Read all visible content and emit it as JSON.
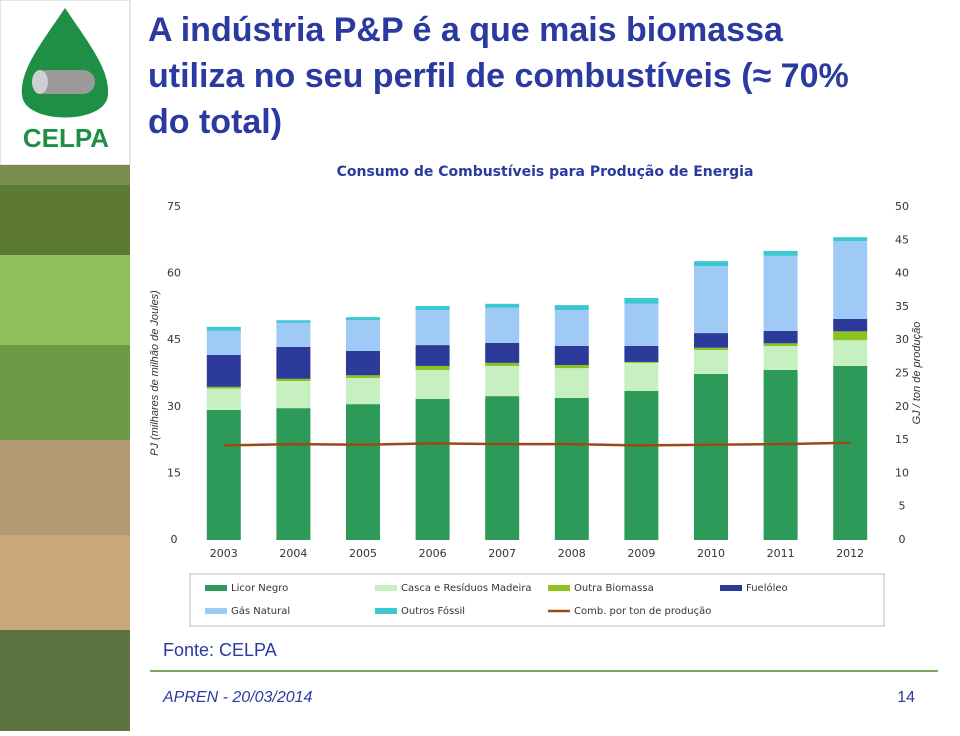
{
  "slide": {
    "logo": "CELPA",
    "title_lines": [
      "A indústria P&P é a que mais biomassa",
      "utiliza no seu perfil de combustíveis (≈ 70%",
      "do total)"
    ],
    "source": "Fonte: CELPA",
    "footer": "APREN - 20/03/2014",
    "page": "14"
  },
  "chart_data": {
    "type": "bar",
    "stacked": true,
    "title": "Consumo de Combustíveis para Produção de Energia",
    "ylabel": "PJ (milhares de milhão de Joules)",
    "y2label": "GJ / ton de produção",
    "categories": [
      "2003",
      "2004",
      "2005",
      "2006",
      "2007",
      "2008",
      "2009",
      "2010",
      "2011",
      "2012"
    ],
    "ylim": [
      0,
      75
    ],
    "yticks": [
      0,
      15,
      30,
      45,
      60,
      75
    ],
    "y2lim": [
      0,
      50
    ],
    "y2ticks": [
      0,
      5,
      10,
      15,
      20,
      25,
      30,
      35,
      40,
      45,
      50
    ],
    "grid": false,
    "legend": "bottom",
    "series": [
      {
        "name": "Licor Negro",
        "color": "#2e9a5a",
        "values": [
          29.3,
          29.7,
          30.6,
          31.8,
          32.4,
          32.0,
          33.6,
          37.4,
          38.3,
          39.2
        ]
      },
      {
        "name": "Casca e Resíduos Madeira",
        "color": "#c6f0c0",
        "values": [
          4.8,
          6.1,
          5.9,
          6.5,
          6.8,
          6.7,
          6.3,
          5.4,
          5.4,
          5.8
        ]
      },
      {
        "name": "Outra Biomassa",
        "color": "#8dc21f",
        "values": [
          0.4,
          0.5,
          0.6,
          0.9,
          0.7,
          0.7,
          0.2,
          0.5,
          0.6,
          2.0
        ]
      },
      {
        "name": "Fuelóleo",
        "color": "#2c3a9a",
        "values": [
          7.2,
          7.2,
          5.5,
          4.7,
          4.5,
          4.3,
          3.6,
          3.3,
          2.8,
          2.8
        ]
      },
      {
        "name": "Gás Natural",
        "color": "#9fcaf5",
        "values": [
          5.4,
          5.4,
          6.9,
          7.9,
          7.9,
          8.1,
          9.5,
          15.1,
          16.9,
          17.5
        ]
      },
      {
        "name": "Outros Fóssil",
        "color": "#3cc8d0",
        "values": [
          0.9,
          0.6,
          0.7,
          0.9,
          0.9,
          1.1,
          1.3,
          1.1,
          1.1,
          0.9
        ]
      },
      {
        "name": "Comb. por ton de produção",
        "color": "#9b4a17",
        "type": "line",
        "axis": "y2",
        "values": [
          14.2,
          14.4,
          14.3,
          14.5,
          14.4,
          14.4,
          14.2,
          14.3,
          14.4,
          14.6
        ]
      }
    ]
  }
}
